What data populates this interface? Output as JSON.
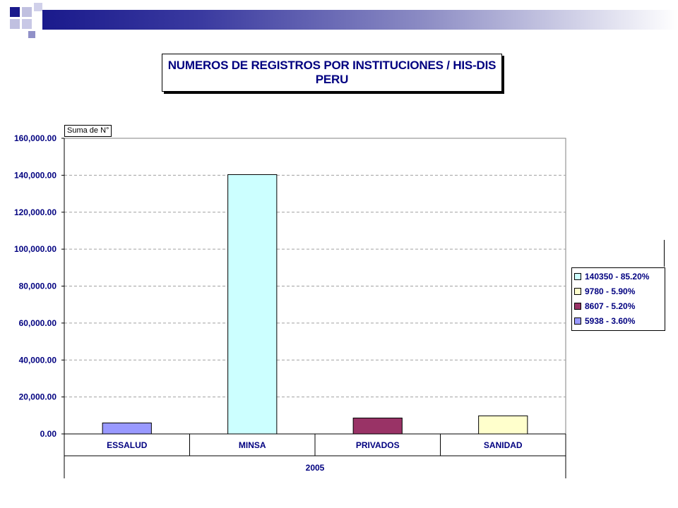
{
  "chart_data": {
    "type": "bar",
    "title": "NUMEROS DE REGISTROS POR INSTITUCIONES / HIS-DIS",
    "subtitle": "PERU",
    "data_field": "Suma de N°",
    "categories": [
      "ESSALUD",
      "MINSA",
      "PRIVADOS",
      "SANIDAD"
    ],
    "group_label": "2005",
    "values": [
      5938,
      140350,
      8607,
      9780
    ],
    "bar_colors": [
      "#9999ff",
      "#ccffff",
      "#993366",
      "#ffffcc"
    ],
    "ylim": [
      0,
      160000
    ],
    "yticks": [
      0,
      20000,
      40000,
      60000,
      80000,
      100000,
      120000,
      140000,
      160000
    ],
    "ytick_labels": [
      "0.00",
      "20,000.00",
      "40,000.00",
      "60,000.00",
      "80,000.00",
      "100,000.00",
      "120,000.00",
      "140,000.00",
      "160,000.00"
    ],
    "grid": true,
    "legend_position": "right",
    "legend": [
      {
        "label": "140350 - 85.20%",
        "color": "#ccffff"
      },
      {
        "label": "9780 - 5.90%",
        "color": "#ffffcc"
      },
      {
        "label": "8607 - 5.20%",
        "color": "#993366"
      },
      {
        "label": "5938 - 3.60%",
        "color": "#9999ff"
      }
    ]
  }
}
